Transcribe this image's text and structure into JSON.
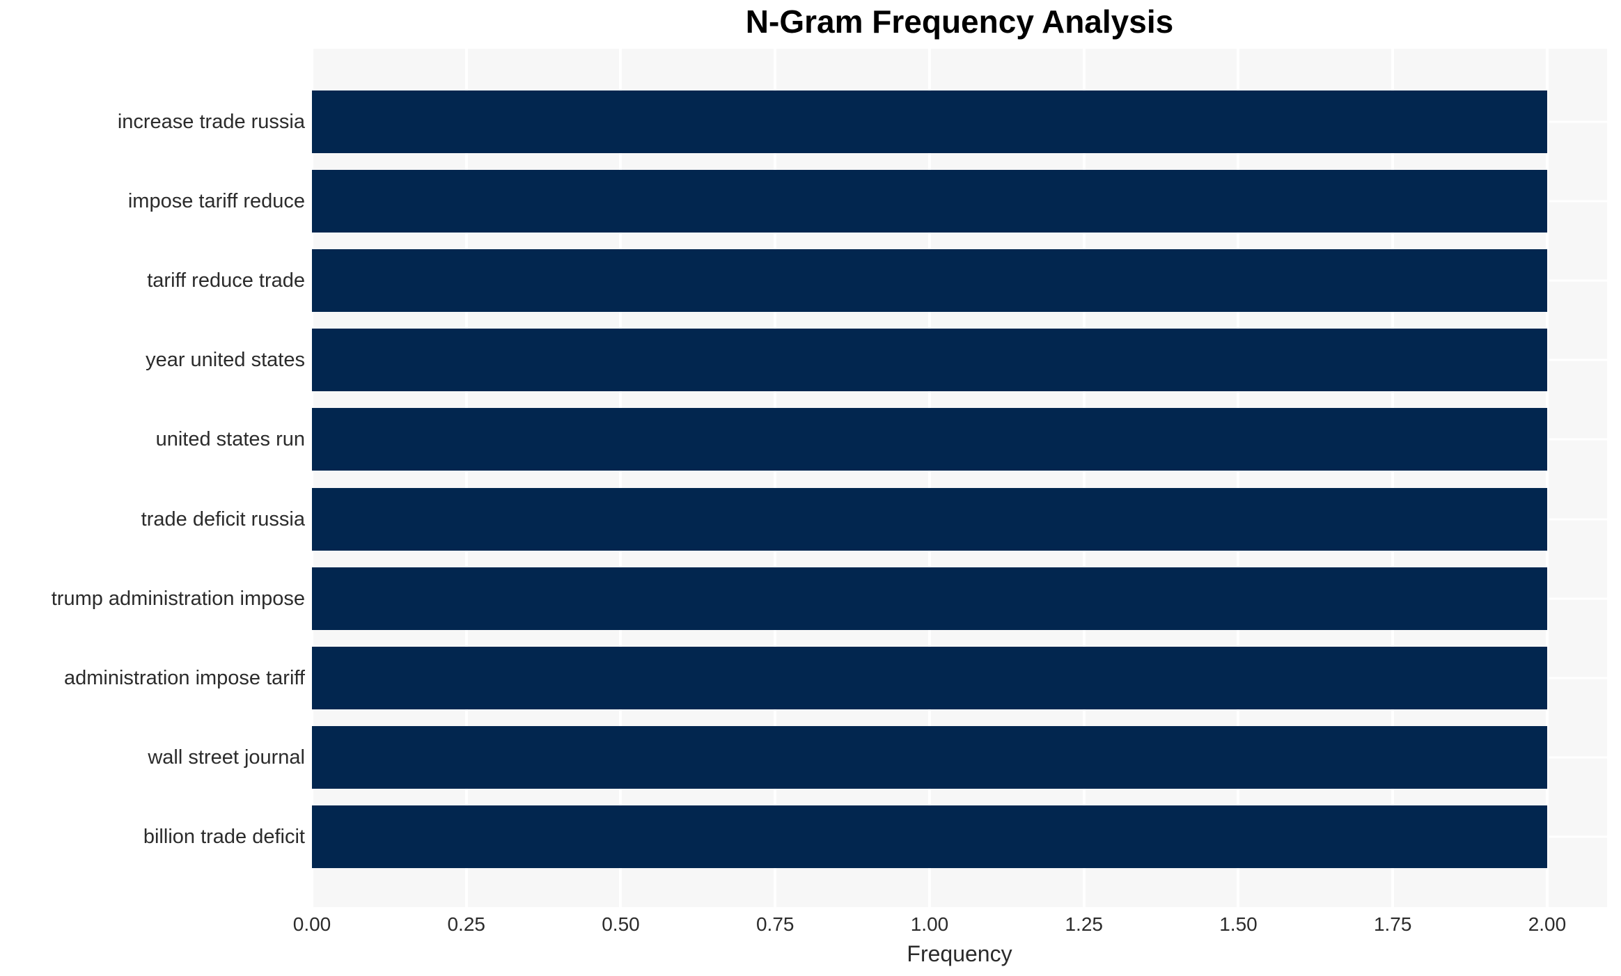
{
  "chart_data": {
    "type": "bar",
    "orientation": "horizontal",
    "title": "N-Gram Frequency Analysis",
    "xlabel": "Frequency",
    "ylabel": "",
    "categories": [
      "increase trade russia",
      "impose tariff reduce",
      "tariff reduce trade",
      "year united states",
      "united states run",
      "trade deficit russia",
      "trump administration impose",
      "administration impose tariff",
      "wall street journal",
      "billion trade deficit"
    ],
    "values": [
      2,
      2,
      2,
      2,
      2,
      2,
      2,
      2,
      2,
      2
    ],
    "xticks": [
      "0.00",
      "0.25",
      "0.50",
      "0.75",
      "1.00",
      "1.25",
      "1.50",
      "1.75",
      "2.00"
    ],
    "xtick_values": [
      0,
      0.25,
      0.5,
      0.75,
      1.0,
      1.25,
      1.5,
      1.75,
      2.0
    ],
    "xlim": [
      0,
      2.097
    ],
    "grid": true,
    "legend_position": "none",
    "colors": {
      "bar": "#02264f",
      "plot_background": "#f7f7f7",
      "gridline": "#ffffff",
      "tick_text": "#2b2b2b",
      "title_text": "#000000"
    }
  }
}
